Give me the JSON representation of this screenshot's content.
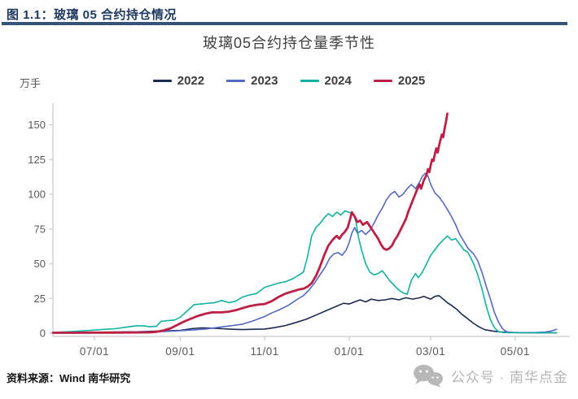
{
  "figure_header": {
    "label": "图 1.1：玻璃 05 合约持仓情况"
  },
  "footer": {
    "source": "资料来源：Wind 南华研究",
    "wechat": "公众号 · 南华点金"
  },
  "colors": {
    "header_navy": "#1f3a60",
    "header_rule": "#365477",
    "axis_gray": "#c9c9c9",
    "tick_label_gray": "#595959",
    "wechat_gray": "#b8b8b8"
  },
  "chart_data": {
    "type": "line",
    "title": "玻璃05合约持仓量季节性",
    "ylabel": "万手",
    "ylim": [
      0,
      160
    ],
    "grid": false,
    "legend_position": "top",
    "y_ticks": [
      0,
      25,
      50,
      75,
      100,
      125,
      150
    ],
    "x_axis": {
      "start": "06/01",
      "end": "05/31",
      "tick_labels": [
        "07/01",
        "09/01",
        "11/01",
        "01/01",
        "03/01",
        "05/01"
      ],
      "tick_day_offsets": [
        30,
        92,
        153,
        214,
        273,
        334
      ]
    },
    "series": [
      {
        "name": "2022",
        "color": "#1b2b50",
        "width": 1.6,
        "points": [
          [
            0,
            0.4
          ],
          [
            15,
            0.5
          ],
          [
            30,
            0.6
          ],
          [
            45,
            0.8
          ],
          [
            61,
            1
          ],
          [
            76,
            1.5
          ],
          [
            92,
            2
          ],
          [
            100,
            3.2
          ],
          [
            107,
            3.8
          ],
          [
            115,
            3.6
          ],
          [
            122,
            3.2
          ],
          [
            130,
            2.8
          ],
          [
            137,
            2.6
          ],
          [
            145,
            2.8
          ],
          [
            153,
            3
          ],
          [
            160,
            4
          ],
          [
            168,
            5.5
          ],
          [
            175,
            7.5
          ],
          [
            183,
            10
          ],
          [
            190,
            13
          ],
          [
            197,
            16
          ],
          [
            204,
            19
          ],
          [
            210,
            21.5
          ],
          [
            214,
            21
          ],
          [
            218,
            22.5
          ],
          [
            222,
            24
          ],
          [
            226,
            22.5
          ],
          [
            230,
            24.5
          ],
          [
            235,
            23.5
          ],
          [
            240,
            24
          ],
          [
            245,
            25
          ],
          [
            250,
            24
          ],
          [
            255,
            25.5
          ],
          [
            260,
            24.5
          ],
          [
            265,
            25.5
          ],
          [
            268,
            26.5
          ],
          [
            273,
            24.5
          ],
          [
            276,
            26.5
          ],
          [
            279,
            27
          ],
          [
            282,
            24.5
          ],
          [
            285,
            22
          ],
          [
            288,
            20
          ],
          [
            292,
            17
          ],
          [
            295,
            14
          ],
          [
            299,
            11
          ],
          [
            304,
            7
          ],
          [
            308,
            4.5
          ],
          [
            312,
            2.5
          ],
          [
            318,
            1.5
          ],
          [
            324,
            0.8
          ],
          [
            334,
            0.4
          ],
          [
            345,
            0.3
          ],
          [
            364,
            0.3
          ]
        ]
      },
      {
        "name": "2023",
        "color": "#5569c2",
        "width": 1.6,
        "points": [
          [
            0,
            0.3
          ],
          [
            20,
            0.4
          ],
          [
            40,
            0.5
          ],
          [
            61,
            0.8
          ],
          [
            80,
            1.2
          ],
          [
            92,
            1.8
          ],
          [
            100,
            2.2
          ],
          [
            110,
            3
          ],
          [
            122,
            4.5
          ],
          [
            130,
            5.5
          ],
          [
            137,
            6.5
          ],
          [
            145,
            9
          ],
          [
            153,
            12
          ],
          [
            158,
            14.5
          ],
          [
            164,
            17
          ],
          [
            170,
            20
          ],
          [
            176,
            24
          ],
          [
            181,
            27
          ],
          [
            185,
            31
          ],
          [
            189,
            36
          ],
          [
            193,
            42
          ],
          [
            197,
            48
          ],
          [
            200,
            54
          ],
          [
            203,
            57
          ],
          [
            206,
            58
          ],
          [
            209,
            56
          ],
          [
            212,
            60
          ],
          [
            214,
            65
          ],
          [
            216,
            72
          ],
          [
            218,
            76
          ],
          [
            220,
            72
          ],
          [
            223,
            74
          ],
          [
            226,
            71
          ],
          [
            229,
            74
          ],
          [
            232,
            79
          ],
          [
            235,
            85
          ],
          [
            238,
            90
          ],
          [
            241,
            96
          ],
          [
            244,
            100
          ],
          [
            247,
            102
          ],
          [
            250,
            98
          ],
          [
            253,
            100
          ],
          [
            256,
            104
          ],
          [
            259,
            107
          ],
          [
            262,
            104
          ],
          [
            265,
            109
          ],
          [
            267,
            113
          ],
          [
            269,
            115
          ],
          [
            271,
            113
          ],
          [
            273,
            107
          ],
          [
            276,
            101
          ],
          [
            279,
            98
          ],
          [
            282,
            94
          ],
          [
            285,
            89
          ],
          [
            288,
            84
          ],
          [
            291,
            78
          ],
          [
            294,
            71
          ],
          [
            297,
            66
          ],
          [
            300,
            61
          ],
          [
            304,
            57
          ],
          [
            307,
            52
          ],
          [
            310,
            44
          ],
          [
            313,
            34
          ],
          [
            316,
            25
          ],
          [
            319,
            15
          ],
          [
            322,
            8
          ],
          [
            325,
            3
          ],
          [
            328,
            1
          ],
          [
            332,
            0.5
          ],
          [
            340,
            0.4
          ],
          [
            350,
            0.5
          ],
          [
            356,
            0.8
          ],
          [
            360,
            1.5
          ],
          [
            364,
            2.8
          ]
        ]
      },
      {
        "name": "2024",
        "color": "#12b2a0",
        "width": 1.6,
        "points": [
          [
            0,
            0.5
          ],
          [
            10,
            1
          ],
          [
            20,
            1.6
          ],
          [
            30,
            2.2
          ],
          [
            38,
            2.8
          ],
          [
            45,
            3.2
          ],
          [
            52,
            4.2
          ],
          [
            58,
            5
          ],
          [
            61,
            5.4
          ],
          [
            66,
            5.2
          ],
          [
            70,
            4.6
          ],
          [
            75,
            5
          ],
          [
            78,
            8.5
          ],
          [
            83,
            9
          ],
          [
            88,
            9.5
          ],
          [
            92,
            11.5
          ],
          [
            97,
            16
          ],
          [
            102,
            20.5
          ],
          [
            107,
            21
          ],
          [
            112,
            21.5
          ],
          [
            117,
            22
          ],
          [
            122,
            23.5
          ],
          [
            127,
            22
          ],
          [
            132,
            23
          ],
          [
            137,
            26
          ],
          [
            142,
            27.5
          ],
          [
            147,
            28.5
          ],
          [
            153,
            33
          ],
          [
            158,
            34.5
          ],
          [
            163,
            36
          ],
          [
            168,
            37
          ],
          [
            173,
            39
          ],
          [
            178,
            42
          ],
          [
            181,
            44
          ],
          [
            184,
            55
          ],
          [
            187,
            70
          ],
          [
            190,
            76
          ],
          [
            193,
            79
          ],
          [
            196,
            83
          ],
          [
            199,
            86
          ],
          [
            202,
            84
          ],
          [
            205,
            87
          ],
          [
            208,
            85
          ],
          [
            211,
            88
          ],
          [
            214,
            87
          ],
          [
            217,
            86
          ],
          [
            219,
            80
          ],
          [
            221,
            68
          ],
          [
            223,
            60
          ],
          [
            226,
            50
          ],
          [
            229,
            44
          ],
          [
            232,
            42
          ],
          [
            235,
            43
          ],
          [
            238,
            45
          ],
          [
            241,
            41
          ],
          [
            244,
            37
          ],
          [
            247,
            34
          ],
          [
            250,
            31
          ],
          [
            253,
            29
          ],
          [
            256,
            28
          ],
          [
            259,
            38
          ],
          [
            262,
            43
          ],
          [
            264,
            40
          ],
          [
            267,
            44
          ],
          [
            270,
            50
          ],
          [
            273,
            56
          ],
          [
            276,
            60
          ],
          [
            279,
            64
          ],
          [
            282,
            67
          ],
          [
            285,
            70
          ],
          [
            288,
            67
          ],
          [
            291,
            68
          ],
          [
            294,
            64
          ],
          [
            297,
            60
          ],
          [
            300,
            58
          ],
          [
            304,
            50
          ],
          [
            307,
            42
          ],
          [
            310,
            32
          ],
          [
            313,
            20
          ],
          [
            316,
            10
          ],
          [
            319,
            4
          ],
          [
            322,
            1
          ],
          [
            326,
            0.4
          ],
          [
            340,
            0.3
          ],
          [
            364,
            0.3
          ]
        ]
      },
      {
        "name": "2025",
        "color": "#bc2047",
        "width": 2.8,
        "points": [
          [
            0,
            0.3
          ],
          [
            15,
            0.3
          ],
          [
            30,
            0.4
          ],
          [
            45,
            0.4
          ],
          [
            61,
            0.5
          ],
          [
            70,
            0.6
          ],
          [
            75,
            1
          ],
          [
            80,
            2
          ],
          [
            85,
            3.5
          ],
          [
            90,
            6
          ],
          [
            95,
            8.5
          ],
          [
            100,
            10.5
          ],
          [
            105,
            12.5
          ],
          [
            110,
            14
          ],
          [
            115,
            15
          ],
          [
            122,
            15
          ],
          [
            127,
            15.5
          ],
          [
            132,
            16.5
          ],
          [
            137,
            18
          ],
          [
            142,
            19.5
          ],
          [
            148,
            20.5
          ],
          [
            153,
            21
          ],
          [
            158,
            23
          ],
          [
            163,
            26
          ],
          [
            168,
            28.5
          ],
          [
            173,
            30
          ],
          [
            178,
            31.5
          ],
          [
            181,
            32
          ],
          [
            184,
            33.5
          ],
          [
            187,
            36
          ],
          [
            190,
            41
          ],
          [
            193,
            48
          ],
          [
            196,
            56
          ],
          [
            199,
            63
          ],
          [
            202,
            67
          ],
          [
            205,
            70
          ],
          [
            207,
            68
          ],
          [
            209,
            71
          ],
          [
            211,
            73
          ],
          [
            213,
            76
          ],
          [
            215,
            83
          ],
          [
            216,
            87
          ],
          [
            218,
            84
          ],
          [
            220,
            80
          ],
          [
            222,
            81
          ],
          [
            224,
            78
          ],
          [
            227,
            80
          ],
          [
            229,
            77
          ],
          [
            231,
            74
          ],
          [
            233,
            71
          ],
          [
            235,
            68
          ],
          [
            237,
            64
          ],
          [
            239,
            61
          ],
          [
            241,
            60
          ],
          [
            243,
            61
          ],
          [
            245,
            63
          ],
          [
            247,
            67
          ],
          [
            249,
            70
          ],
          [
            251,
            74
          ],
          [
            253,
            78
          ],
          [
            255,
            82
          ],
          [
            257,
            88
          ],
          [
            259,
            93
          ],
          [
            261,
            98
          ],
          [
            263,
            103
          ],
          [
            265,
            107
          ],
          [
            266,
            104
          ],
          [
            268,
            110
          ],
          [
            270,
            114
          ],
          [
            271,
            118
          ],
          [
            272,
            116
          ],
          [
            273,
            121
          ],
          [
            274,
            125
          ],
          [
            275,
            124
          ],
          [
            276,
            129
          ],
          [
            277,
            133
          ],
          [
            278,
            130
          ],
          [
            279,
            135
          ],
          [
            280,
            139
          ],
          [
            281,
            143
          ],
          [
            282,
            141
          ],
          [
            283,
            147
          ],
          [
            284,
            152
          ],
          [
            285,
            158
          ]
        ]
      }
    ]
  }
}
